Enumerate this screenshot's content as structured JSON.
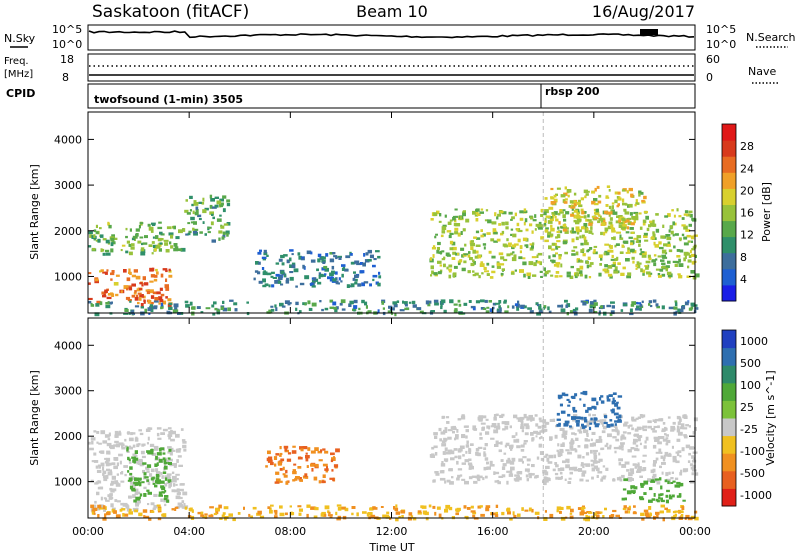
{
  "header": {
    "station": "Saskatoon (fitACF)",
    "beam": "Beam 10",
    "date": "16/Aug/2017"
  },
  "noise_panel": {
    "left_label": "N.Sky",
    "right_label": "N.Search",
    "top_tick": "10^5",
    "bottom_tick": "10^0"
  },
  "freq_panel": {
    "left_label_top": "Freq.",
    "left_label_bottom": "[MHz]",
    "right_label": "Nave",
    "left_ticks": [
      "18",
      "8"
    ],
    "right_ticks": [
      "60",
      "0"
    ]
  },
  "cpid_panel": {
    "label": "CPID",
    "programs": [
      {
        "name": "twofsound (1-min) 3505",
        "start_hour": 0
      },
      {
        "name": "rbsp 200",
        "start_hour": 18
      }
    ]
  },
  "chart_data": [
    {
      "type": "heatmap",
      "panel": "power",
      "ylabel": "Slant Range [km]",
      "xlabel": "",
      "x_range_hours": [
        0,
        24
      ],
      "ylim": [
        200,
        4600
      ],
      "y_ticks": [
        1000,
        2000,
        3000,
        4000
      ],
      "x_ticks": [
        0,
        4,
        8,
        12,
        16,
        20,
        24
      ],
      "colorbar": {
        "label": "Power [dB]",
        "ticks": [
          "4",
          "8",
          "12",
          "16",
          "20",
          "24",
          "28"
        ],
        "colors": [
          "#1a1ee6",
          "#1e5fd2",
          "#3d6e9c",
          "#2f8f6a",
          "#58a84a",
          "#98c23a",
          "#d8d02e",
          "#f0a028",
          "#e86c22",
          "#d83a1c",
          "#e01818"
        ]
      },
      "echo_regions": [
        {
          "t0": 0.0,
          "t1": 3.2,
          "r0": 400,
          "r1": 1200,
          "power_dB": 24
        },
        {
          "t0": 0.0,
          "t1": 3.8,
          "r0": 1500,
          "r1": 2200,
          "power_dB": 14
        },
        {
          "t0": 3.8,
          "t1": 5.5,
          "r0": 1800,
          "r1": 2800,
          "power_dB": 12
        },
        {
          "t0": 6.5,
          "t1": 11.5,
          "r0": 800,
          "r1": 1600,
          "power_dB": 8
        },
        {
          "t0": 13.5,
          "t1": 24.0,
          "r0": 1000,
          "r1": 2500,
          "power_dB": 16
        },
        {
          "t0": 18.0,
          "t1": 22.0,
          "r0": 2000,
          "r1": 3000,
          "power_dB": 18
        },
        {
          "t0": 0.0,
          "t1": 24.0,
          "r0": 200,
          "r1": 500,
          "power_dB": 10
        }
      ]
    },
    {
      "type": "heatmap",
      "panel": "velocity",
      "ylabel": "Slant Range [km]",
      "xlabel": "Time UT",
      "x_range_hours": [
        0,
        24
      ],
      "ylim": [
        200,
        4600
      ],
      "y_ticks": [
        1000,
        2000,
        3000,
        4000
      ],
      "x_ticks": [
        0,
        4,
        8,
        12,
        16,
        20,
        24
      ],
      "x_tick_labels": [
        "00:00",
        "04:00",
        "08:00",
        "12:00",
        "16:00",
        "20:00",
        "00:00"
      ],
      "colorbar": {
        "label": "Velocity [m s^-1]",
        "ticks": [
          "1000",
          "500",
          "100",
          "25",
          "-25",
          "-100",
          "-500",
          "-1000"
        ],
        "colors": [
          "#2040c0",
          "#2e6fb0",
          "#2e8a6a",
          "#4fa838",
          "#7cc23a",
          "#c8c8c8",
          "#f0c020",
          "#f09020",
          "#e86020",
          "#e02018"
        ]
      },
      "echo_regions": [
        {
          "t0": 0.0,
          "t1": 3.8,
          "r0": 400,
          "r1": 2200,
          "velocity_mps": 0
        },
        {
          "t0": 1.5,
          "t1": 3.2,
          "r0": 600,
          "r1": 1800,
          "velocity_mps": 150
        },
        {
          "t0": 7.0,
          "t1": 9.8,
          "r0": 1000,
          "r1": 1800,
          "velocity_mps": -300
        },
        {
          "t0": 13.5,
          "t1": 24.0,
          "r0": 1000,
          "r1": 2500,
          "velocity_mps": 0
        },
        {
          "t0": 18.5,
          "t1": 21.0,
          "r0": 2200,
          "r1": 3000,
          "velocity_mps": 600
        },
        {
          "t0": 21.0,
          "t1": 23.5,
          "r0": 600,
          "r1": 1100,
          "velocity_mps": 150
        },
        {
          "t0": 0.0,
          "t1": 24.0,
          "r0": 200,
          "r1": 500,
          "velocity_mps": -60
        }
      ]
    }
  ]
}
